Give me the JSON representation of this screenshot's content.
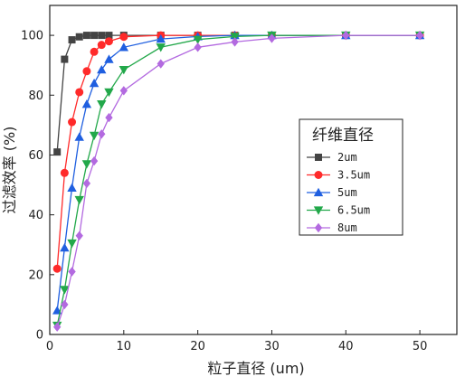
{
  "chart_data": {
    "type": "line",
    "title": "",
    "xlabel": "粒子直径 (um)",
    "ylabel": "过滤效率 (%)",
    "xlim": [
      0,
      55
    ],
    "ylim": [
      0,
      110
    ],
    "xticks": [
      0,
      10,
      20,
      30,
      40,
      50
    ],
    "yticks": [
      0,
      20,
      40,
      60,
      80,
      100
    ],
    "grid": false,
    "legend": {
      "title": "纤维直径",
      "position": "right-middle"
    },
    "series": [
      {
        "name": "2um",
        "color": "#444444",
        "marker": "square",
        "points": [
          [
            1,
            61
          ],
          [
            2,
            92
          ],
          [
            3,
            98.5
          ],
          [
            4,
            99.5
          ],
          [
            5,
            100
          ],
          [
            6,
            100
          ],
          [
            7,
            100
          ],
          [
            8,
            100
          ],
          [
            10,
            100
          ],
          [
            15,
            100
          ],
          [
            20,
            100
          ],
          [
            25,
            100
          ],
          [
            30,
            100
          ],
          [
            40,
            100
          ],
          [
            50,
            100
          ]
        ]
      },
      {
        "name": "3.5um",
        "color": "#ff2a2a",
        "marker": "circle",
        "points": [
          [
            1,
            22
          ],
          [
            2,
            54
          ],
          [
            3,
            71
          ],
          [
            4,
            81
          ],
          [
            5,
            88
          ],
          [
            6,
            94.5
          ],
          [
            7,
            96.8
          ],
          [
            8,
            98
          ],
          [
            10,
            99.5
          ],
          [
            15,
            100
          ],
          [
            20,
            100
          ],
          [
            25,
            100
          ],
          [
            30,
            100
          ],
          [
            40,
            100
          ],
          [
            50,
            100
          ]
        ]
      },
      {
        "name": "5um",
        "color": "#1f5fe0",
        "marker": "triangle-up",
        "points": [
          [
            1,
            8
          ],
          [
            2,
            29
          ],
          [
            3,
            49
          ],
          [
            4,
            66
          ],
          [
            5,
            77
          ],
          [
            6,
            84
          ],
          [
            7,
            88.5
          ],
          [
            8,
            92
          ],
          [
            10,
            96
          ],
          [
            15,
            98.8
          ],
          [
            20,
            99.6
          ],
          [
            25,
            100
          ],
          [
            30,
            100
          ],
          [
            40,
            100
          ],
          [
            50,
            100
          ]
        ]
      },
      {
        "name": "6.5um",
        "color": "#22a84a",
        "marker": "triangle-down",
        "points": [
          [
            1,
            3
          ],
          [
            2,
            15
          ],
          [
            3,
            30.5
          ],
          [
            4,
            45
          ],
          [
            5,
            57
          ],
          [
            6,
            66.5
          ],
          [
            7,
            77
          ],
          [
            8,
            81
          ],
          [
            10,
            88.5
          ],
          [
            15,
            96
          ],
          [
            20,
            98.6
          ],
          [
            25,
            99.6
          ],
          [
            30,
            100
          ],
          [
            40,
            100
          ],
          [
            50,
            100
          ]
        ]
      },
      {
        "name": "8um",
        "color": "#b36ae0",
        "marker": "diamond",
        "points": [
          [
            1,
            2.5
          ],
          [
            2,
            10
          ],
          [
            3,
            21
          ],
          [
            4,
            33
          ],
          [
            5,
            50.5
          ],
          [
            6,
            58
          ],
          [
            7,
            67
          ],
          [
            8,
            72.5
          ],
          [
            10,
            81.5
          ],
          [
            15,
            90.5
          ],
          [
            20,
            96
          ],
          [
            25,
            97.8
          ],
          [
            30,
            99
          ],
          [
            40,
            100
          ],
          [
            50,
            100
          ]
        ]
      }
    ]
  }
}
